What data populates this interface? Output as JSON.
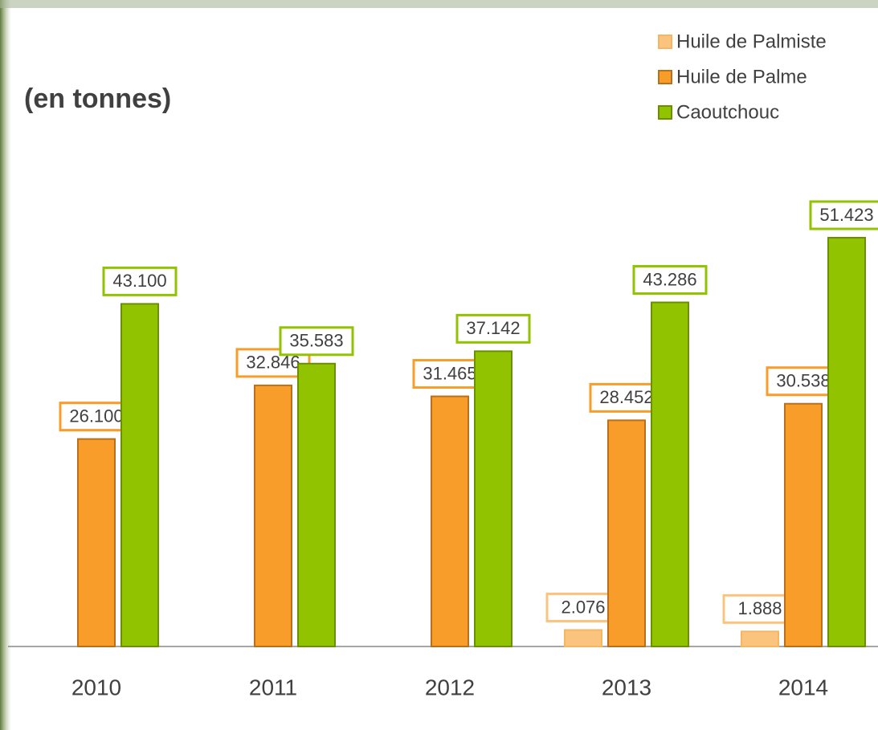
{
  "chart_data": {
    "type": "bar",
    "title": "(en tonnes)",
    "categories": [
      "2010",
      "2011",
      "2012",
      "2013",
      "2014"
    ],
    "series": [
      {
        "name": "Huile de Palmiste",
        "color": "#fbc47e",
        "values": [
          null,
          null,
          null,
          2076,
          1888
        ],
        "value_labels": [
          null,
          null,
          null,
          "2.076",
          "1.888"
        ]
      },
      {
        "name": "Huile de Palme",
        "color": "#f89c2a",
        "values": [
          26100,
          32846,
          31465,
          28452,
          30538
        ],
        "value_labels": [
          "26.100",
          "32.846",
          "31.465",
          "28.452",
          "30.538"
        ]
      },
      {
        "name": "Caoutchouc",
        "color": "#92c300",
        "values": [
          43100,
          35583,
          37142,
          43286,
          51423
        ],
        "value_labels": [
          "43.100",
          "35.583",
          "37.142",
          "43.286",
          "51.423"
        ]
      }
    ],
    "legend": "top-right"
  }
}
